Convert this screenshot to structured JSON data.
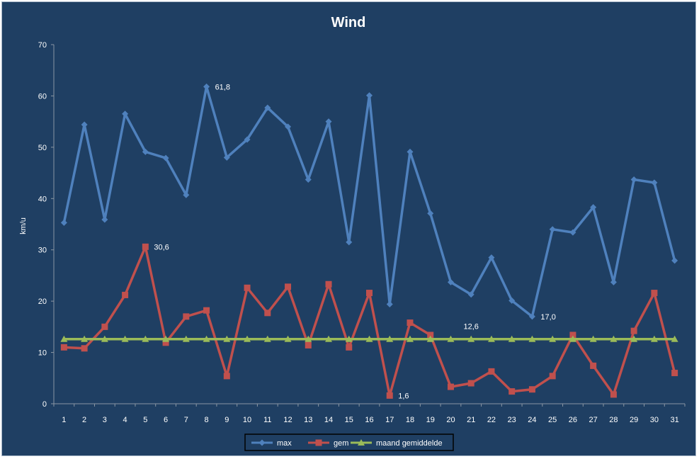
{
  "chart_data": {
    "type": "line",
    "title": "Wind",
    "xlabel": "",
    "ylabel": "km/u",
    "ylim": [
      0,
      70
    ],
    "yticks": [
      0,
      10,
      20,
      30,
      40,
      50,
      60,
      70
    ],
    "categories": [
      "1",
      "2",
      "3",
      "4",
      "5",
      "6",
      "7",
      "8",
      "9",
      "10",
      "11",
      "12",
      "13",
      "14",
      "15",
      "16",
      "17",
      "18",
      "19",
      "20",
      "21",
      "22",
      "23",
      "24",
      "25",
      "26",
      "27",
      "28",
      "29",
      "30",
      "31"
    ],
    "grid": false,
    "legend_position": "bottom",
    "series": [
      {
        "name": "max",
        "color": "#4f81bd",
        "marker": "diamond",
        "values": [
          35.3,
          54.4,
          35.9,
          56.5,
          49.1,
          47.9,
          40.7,
          61.8,
          48.0,
          51.5,
          57.7,
          54.0,
          43.7,
          55.0,
          31.5,
          60.1,
          19.4,
          49.1,
          37.1,
          23.7,
          21.3,
          28.5,
          20.1,
          17.0,
          34.0,
          33.4,
          38.3,
          23.7,
          43.7,
          43.1,
          27.9
        ]
      },
      {
        "name": "gem",
        "color": "#c0504d",
        "marker": "square",
        "values": [
          11.0,
          10.8,
          15.0,
          21.2,
          30.6,
          11.9,
          17.0,
          18.2,
          5.4,
          22.6,
          17.7,
          22.8,
          11.4,
          23.3,
          11.0,
          21.6,
          1.6,
          15.8,
          13.4,
          3.3,
          4.0,
          6.3,
          2.4,
          2.8,
          5.4,
          13.4,
          7.4,
          1.8,
          14.2,
          21.6,
          6.0
        ]
      },
      {
        "name": "maand gemiddelde",
        "color": "#9bbb59",
        "marker": "triangle",
        "values": [
          12.6,
          12.6,
          12.6,
          12.6,
          12.6,
          12.6,
          12.6,
          12.6,
          12.6,
          12.6,
          12.6,
          12.6,
          12.6,
          12.6,
          12.6,
          12.6,
          12.6,
          12.6,
          12.6,
          12.6,
          12.6,
          12.6,
          12.6,
          12.6,
          12.6,
          12.6,
          12.6,
          12.6,
          12.6,
          12.6,
          12.6
        ]
      }
    ],
    "annotations": [
      {
        "series": 0,
        "index": 7,
        "text": "61,8"
      },
      {
        "series": 1,
        "index": 4,
        "text": "30,6"
      },
      {
        "series": 1,
        "index": 16,
        "text": "1,6"
      },
      {
        "series": 2,
        "index": 20,
        "text": "12,6"
      },
      {
        "series": 0,
        "index": 23,
        "text": "17,0"
      }
    ]
  }
}
